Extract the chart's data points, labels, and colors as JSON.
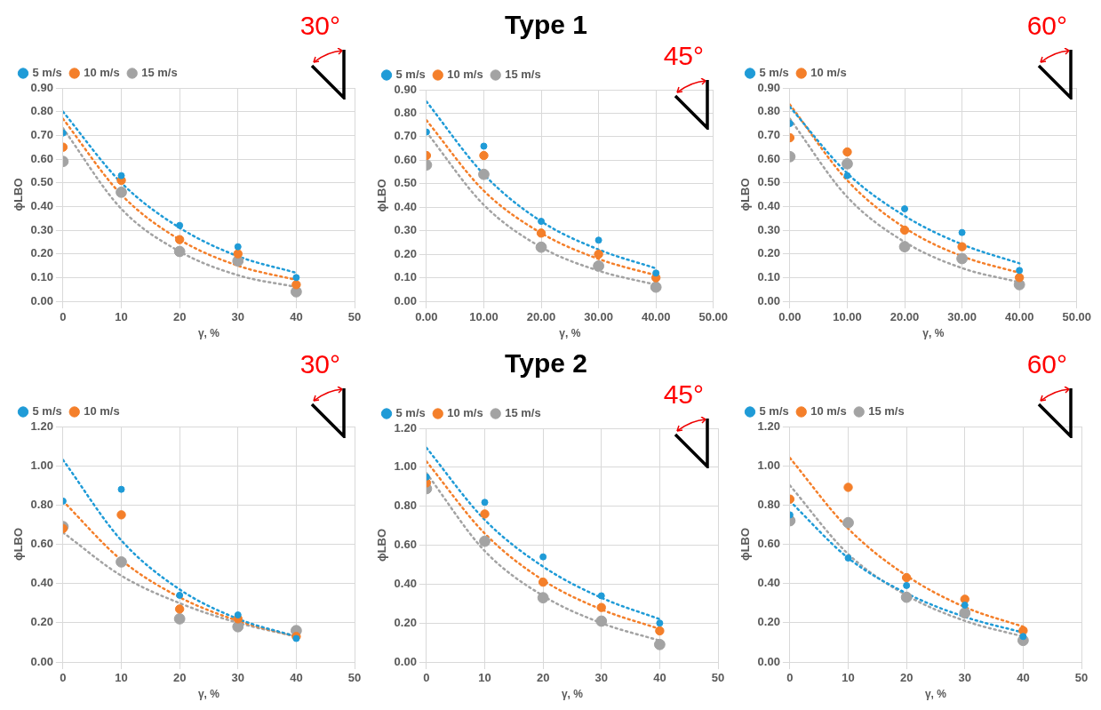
{
  "chart_data": [
    {
      "type": "scatter",
      "xlabel": "γ, %",
      "ylabel": "ϕLBO",
      "annotations": [
        "30°"
      ],
      "x": [
        0,
        10,
        20,
        30,
        40
      ],
      "xlim": [
        0,
        50
      ],
      "xticks": [
        0,
        10,
        20,
        30,
        40,
        50
      ],
      "ylim": [
        0,
        0.9
      ],
      "yticks": [
        {
          "value": 0,
          "label": "0.00"
        },
        {
          "value": 0.1,
          "label": "0.10"
        },
        {
          "value": 0.2,
          "label": "0.20"
        },
        {
          "value": 0.3,
          "label": "0.30"
        },
        {
          "value": 0.4,
          "label": "0.40"
        },
        {
          "value": 0.5,
          "label": "0.50"
        },
        {
          "value": 0.6,
          "label": "0.60"
        },
        {
          "value": 0.7,
          "label": "0.70"
        },
        {
          "value": 0.8,
          "label": "0.80"
        },
        {
          "value": 0.9,
          "label": "0.90"
        }
      ],
      "grid": true,
      "legend": "top left",
      "marker": "circle",
      "series": [
        {
          "name": "5 m/s",
          "color": "#1f9bd7",
          "values": [
            0.71,
            0.53,
            0.32,
            0.23,
            0.1
          ]
        },
        {
          "name": "10 m/s",
          "color": "#f47f2a",
          "values": [
            0.65,
            0.51,
            0.26,
            0.2,
            0.07
          ]
        },
        {
          "name": "15 m/s",
          "color": "#a3a3a3",
          "values": [
            0.59,
            0.46,
            0.21,
            0.17,
            0.04
          ]
        },
        {
          "type": "line",
          "marker": "none",
          "line_style": "dotted",
          "color": "#1f9bd7",
          "x": [
            0,
            10,
            20,
            30,
            40
          ],
          "values": [
            0.8,
            0.5,
            0.31,
            0.19,
            0.12
          ]
        },
        {
          "type": "line",
          "marker": "none",
          "line_style": "dotted",
          "color": "#f47f2a",
          "x": [
            0,
            10,
            20,
            30,
            40
          ],
          "values": [
            0.77,
            0.45,
            0.26,
            0.15,
            0.09
          ]
        },
        {
          "type": "line",
          "marker": "none",
          "line_style": "dotted",
          "color": "#a3a3a3",
          "x": [
            0,
            10,
            20,
            30,
            40
          ],
          "values": [
            0.73,
            0.39,
            0.21,
            0.11,
            0.06
          ]
        }
      ]
    },
    {
      "type": "scatter",
      "title": "Type 1",
      "xlabel": "γ, %",
      "ylabel": "ϕLBO",
      "annotations": [
        "45°"
      ],
      "x": [
        0,
        10,
        20,
        30,
        40
      ],
      "xlim": [
        0,
        50
      ],
      "xticks": [
        {
          "value": 0,
          "label": "0.00"
        },
        {
          "value": 10,
          "label": "10.00"
        },
        {
          "value": 20,
          "label": "20.00"
        },
        {
          "value": 30,
          "label": "30.00"
        },
        {
          "value": 40,
          "label": "40.00"
        },
        {
          "value": 50,
          "label": "50.00"
        }
      ],
      "ylim": [
        0,
        0.9
      ],
      "yticks": [
        {
          "value": 0,
          "label": "0.00"
        },
        {
          "value": 0.1,
          "label": "0.10"
        },
        {
          "value": 0.2,
          "label": "0.20"
        },
        {
          "value": 0.3,
          "label": "0.30"
        },
        {
          "value": 0.4,
          "label": "0.40"
        },
        {
          "value": 0.5,
          "label": "0.50"
        },
        {
          "value": 0.6,
          "label": "0.60"
        },
        {
          "value": 0.7,
          "label": "0.70"
        },
        {
          "value": 0.8,
          "label": "0.80"
        },
        {
          "value": 0.9,
          "label": "0.90"
        }
      ],
      "grid": true,
      "legend": "top left",
      "marker": "circle",
      "series": [
        {
          "name": "5 m/s",
          "color": "#1f9bd7",
          "values": [
            0.72,
            0.66,
            0.34,
            0.26,
            0.12
          ]
        },
        {
          "name": "10 m/s",
          "color": "#f47f2a",
          "values": [
            0.62,
            0.62,
            0.29,
            0.2,
            0.1
          ]
        },
        {
          "name": "15 m/s",
          "color": "#a3a3a3",
          "values": [
            0.58,
            0.54,
            0.23,
            0.15,
            0.06
          ]
        },
        {
          "type": "line",
          "marker": "none",
          "line_style": "dotted",
          "color": "#1f9bd7",
          "x": [
            0,
            10,
            20,
            30,
            40
          ],
          "values": [
            0.85,
            0.54,
            0.34,
            0.22,
            0.14
          ]
        },
        {
          "type": "line",
          "marker": "none",
          "line_style": "dotted",
          "color": "#f47f2a",
          "x": [
            0,
            10,
            20,
            30,
            40
          ],
          "values": [
            0.77,
            0.47,
            0.29,
            0.18,
            0.11
          ]
        },
        {
          "type": "line",
          "marker": "none",
          "line_style": "dotted",
          "color": "#a3a3a3",
          "x": [
            0,
            10,
            20,
            30,
            40
          ],
          "values": [
            0.72,
            0.41,
            0.23,
            0.13,
            0.07
          ]
        }
      ]
    },
    {
      "type": "scatter",
      "xlabel": "γ, %",
      "ylabel": "ϕLBO",
      "annotations": [
        "60°"
      ],
      "x": [
        0,
        10,
        20,
        30,
        40
      ],
      "xlim": [
        0,
        50
      ],
      "xticks": [
        {
          "value": 0,
          "label": "0.00"
        },
        {
          "value": 10,
          "label": "10.00"
        },
        {
          "value": 20,
          "label": "20.00"
        },
        {
          "value": 30,
          "label": "30.00"
        },
        {
          "value": 40,
          "label": "40.00"
        },
        {
          "value": 50,
          "label": "50.00"
        }
      ],
      "ylim": [
        0,
        0.9
      ],
      "yticks": [
        {
          "value": 0,
          "label": "0.00"
        },
        {
          "value": 0.1,
          "label": "0.10"
        },
        {
          "value": 0.2,
          "label": "0.20"
        },
        {
          "value": 0.3,
          "label": "0.30"
        },
        {
          "value": 0.4,
          "label": "0.40"
        },
        {
          "value": 0.5,
          "label": "0.50"
        },
        {
          "value": 0.6,
          "label": "0.60"
        },
        {
          "value": 0.7,
          "label": "0.70"
        },
        {
          "value": 0.8,
          "label": "0.80"
        },
        {
          "value": 0.9,
          "label": "0.90"
        }
      ],
      "grid": true,
      "legend": "top left",
      "marker": "circle",
      "series": [
        {
          "name": "5 m/s",
          "color": "#1f9bd7",
          "values": [
            0.75,
            0.53,
            0.39,
            0.29,
            0.13
          ]
        },
        {
          "name": "10 m/s",
          "color": "#f47f2a",
          "values": [
            0.69,
            0.63,
            0.3,
            0.23,
            0.1
          ]
        },
        {
          "color": "#a3a3a3",
          "values": [
            0.61,
            0.58,
            0.23,
            0.18,
            0.07
          ]
        },
        {
          "type": "line",
          "marker": "none",
          "line_style": "dotted",
          "color": "#1f9bd7",
          "x": [
            0,
            10,
            20,
            30,
            40
          ],
          "values": [
            0.82,
            0.54,
            0.36,
            0.24,
            0.16
          ]
        },
        {
          "type": "line",
          "marker": "none",
          "line_style": "dotted",
          "color": "#f47f2a",
          "x": [
            0,
            10,
            20,
            30,
            40
          ],
          "values": [
            0.83,
            0.51,
            0.31,
            0.19,
            0.12
          ]
        },
        {
          "type": "line",
          "marker": "none",
          "line_style": "dotted",
          "color": "#a3a3a3",
          "x": [
            0,
            10,
            20,
            30,
            40
          ],
          "values": [
            0.77,
            0.44,
            0.25,
            0.14,
            0.08
          ]
        }
      ]
    },
    {
      "type": "scatter",
      "xlabel": "γ, %",
      "ylabel": "ϕLBO",
      "annotations": [
        "30°"
      ],
      "x": [
        0,
        10,
        20,
        30,
        40
      ],
      "xlim": [
        0,
        50
      ],
      "xticks": [
        0,
        10,
        20,
        30,
        40,
        50
      ],
      "ylim": [
        0,
        1.2
      ],
      "yticks": [
        {
          "value": 0,
          "label": "0.00"
        },
        {
          "value": 0.2,
          "label": "0.20"
        },
        {
          "value": 0.4,
          "label": "0.40"
        },
        {
          "value": 0.6,
          "label": "0.60"
        },
        {
          "value": 0.8,
          "label": "0.80"
        },
        {
          "value": 1,
          "label": "1.00"
        },
        {
          "value": 1.2,
          "label": "1.20"
        }
      ],
      "grid": true,
      "legend": "top left",
      "marker": "circle",
      "series": [
        {
          "name": "5 m/s",
          "color": "#1f9bd7",
          "values": [
            0.82,
            0.88,
            0.34,
            0.24,
            0.12
          ]
        },
        {
          "name": "10 m/s",
          "color": "#f47f2a",
          "values": [
            0.68,
            0.75,
            0.27,
            0.22,
            0.13
          ]
        },
        {
          "color": "#a3a3a3",
          "values": [
            0.69,
            0.51,
            0.22,
            0.18,
            0.16
          ]
        },
        {
          "type": "line",
          "marker": "none",
          "line_style": "dotted",
          "color": "#1f9bd7",
          "x": [
            0,
            10,
            20,
            30,
            40
          ],
          "values": [
            1.03,
            0.62,
            0.37,
            0.22,
            0.13
          ]
        },
        {
          "type": "line",
          "marker": "none",
          "line_style": "dotted",
          "color": "#f47f2a",
          "x": [
            0,
            10,
            20,
            30,
            40
          ],
          "values": [
            0.82,
            0.52,
            0.33,
            0.21,
            0.13
          ]
        },
        {
          "type": "line",
          "marker": "none",
          "line_style": "dotted",
          "color": "#a3a3a3",
          "x": [
            0,
            10,
            20,
            30,
            40
          ],
          "values": [
            0.66,
            0.44,
            0.3,
            0.2,
            0.13
          ]
        }
      ]
    },
    {
      "type": "scatter",
      "title": "Type 2",
      "xlabel": "γ, %",
      "ylabel": "ϕLBO",
      "annotations": [
        "45°"
      ],
      "x": [
        0,
        10,
        20,
        30,
        40
      ],
      "xlim": [
        0,
        50
      ],
      "xticks": [
        0,
        10,
        20,
        30,
        40,
        50
      ],
      "ylim": [
        0,
        1.2
      ],
      "yticks": [
        {
          "value": 0,
          "label": "0.00"
        },
        {
          "value": 0.2,
          "label": "0.20"
        },
        {
          "value": 0.4,
          "label": "0.40"
        },
        {
          "value": 0.6,
          "label": "0.60"
        },
        {
          "value": 0.8,
          "label": "0.80"
        },
        {
          "value": 1,
          "label": "1.00"
        },
        {
          "value": 1.2,
          "label": "1.20"
        }
      ],
      "grid": true,
      "legend": "top left",
      "marker": "circle",
      "series": [
        {
          "name": "5 m/s",
          "color": "#1f9bd7",
          "values": [
            0.95,
            0.82,
            0.54,
            0.34,
            0.2
          ]
        },
        {
          "name": "10 m/s",
          "color": "#f47f2a",
          "values": [
            0.92,
            0.76,
            0.41,
            0.28,
            0.16
          ]
        },
        {
          "name": "15 m/s",
          "color": "#a3a3a3",
          "values": [
            0.89,
            0.62,
            0.33,
            0.21,
            0.09
          ]
        },
        {
          "type": "line",
          "marker": "none",
          "line_style": "dotted",
          "color": "#1f9bd7",
          "x": [
            0,
            10,
            20,
            30,
            40
          ],
          "values": [
            1.1,
            0.73,
            0.49,
            0.33,
            0.22
          ]
        },
        {
          "type": "line",
          "marker": "none",
          "line_style": "dotted",
          "color": "#f47f2a",
          "x": [
            0,
            10,
            20,
            30,
            40
          ],
          "values": [
            1.03,
            0.66,
            0.42,
            0.27,
            0.17
          ]
        },
        {
          "type": "line",
          "marker": "none",
          "line_style": "dotted",
          "color": "#a3a3a3",
          "x": [
            0,
            10,
            20,
            30,
            40
          ],
          "values": [
            0.97,
            0.57,
            0.34,
            0.2,
            0.11
          ]
        }
      ]
    },
    {
      "type": "scatter",
      "xlabel": "γ, %",
      "ylabel": "ϕLBO",
      "annotations": [
        "60°"
      ],
      "x": [
        0,
        10,
        20,
        30,
        40
      ],
      "xlim": [
        0,
        50
      ],
      "xticks": [
        0,
        10,
        20,
        30,
        40,
        50
      ],
      "ylim": [
        0,
        1.2
      ],
      "yticks": [
        {
          "value": 0,
          "label": "0.00"
        },
        {
          "value": 0.2,
          "label": "0.20"
        },
        {
          "value": 0.4,
          "label": "0.40"
        },
        {
          "value": 0.6,
          "label": "0.60"
        },
        {
          "value": 0.8,
          "label": "0.80"
        },
        {
          "value": 1,
          "label": "1.00"
        },
        {
          "value": 1.2,
          "label": "1.20"
        }
      ],
      "grid": true,
      "legend": "top left",
      "marker": "circle",
      "series": [
        {
          "name": "5 m/s",
          "color": "#1f9bd7",
          "values": [
            0.75,
            0.53,
            0.39,
            0.29,
            0.13
          ]
        },
        {
          "name": "10 m/s",
          "color": "#f47f2a",
          "values": [
            0.83,
            0.89,
            0.43,
            0.32,
            0.16
          ]
        },
        {
          "name": "15 m/s",
          "color": "#a3a3a3",
          "values": [
            0.72,
            0.71,
            0.33,
            0.25,
            0.11
          ]
        },
        {
          "type": "line",
          "marker": "none",
          "line_style": "dotted",
          "color": "#1f9bd7",
          "x": [
            0,
            10,
            20,
            30,
            40
          ],
          "values": [
            0.82,
            0.53,
            0.35,
            0.23,
            0.15
          ]
        },
        {
          "type": "line",
          "marker": "none",
          "line_style": "dotted",
          "color": "#f47f2a",
          "x": [
            0,
            10,
            20,
            30,
            40
          ],
          "values": [
            1.04,
            0.68,
            0.44,
            0.28,
            0.18
          ]
        },
        {
          "type": "line",
          "marker": "none",
          "line_style": "dotted",
          "color": "#a3a3a3",
          "x": [
            0,
            10,
            20,
            30,
            40
          ],
          "values": [
            0.9,
            0.55,
            0.34,
            0.21,
            0.13
          ]
        }
      ]
    }
  ]
}
